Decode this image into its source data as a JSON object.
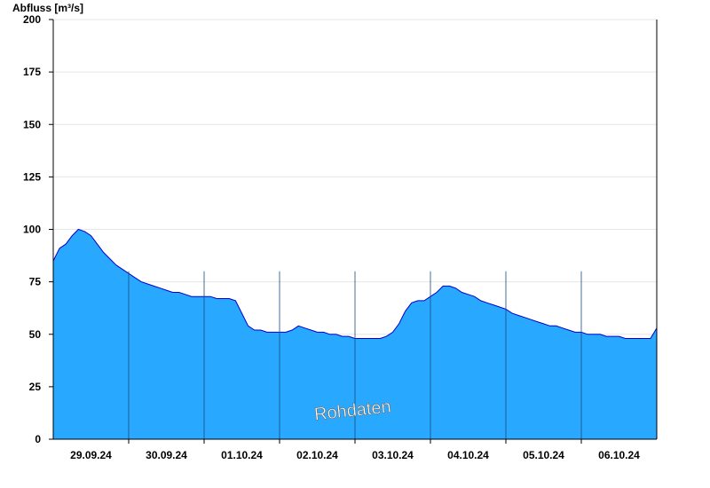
{
  "chart_data": {
    "type": "area",
    "ylabel": "Abfluss [m³/s]",
    "ylim": [
      0,
      200
    ],
    "yticks": [
      0,
      25,
      50,
      75,
      100,
      125,
      150,
      175,
      200
    ],
    "x_start": "2024-09-28T12:00",
    "x_end": "2024-10-06T12:00",
    "xtick_labels": [
      "29.09.24",
      "30.09.24",
      "01.10.24",
      "02.10.24",
      "03.10.24",
      "04.10.24",
      "05.10.24",
      "06.10.24"
    ],
    "day_separators": [
      "2024-09-29T12:00",
      "2024-09-30T12:00",
      "2024-10-01T12:00",
      "2024-10-02T12:00",
      "2024-10-03T12:00",
      "2024-10-04T12:00",
      "2024-10-05T12:00",
      "2024-10-06T12:00"
    ],
    "watermark": "Rohdaten",
    "colors": {
      "fill": "#29a8ff",
      "line": "#0000cc",
      "grid": "#e6e6e6",
      "separator": "#1a4a80"
    },
    "grid": true,
    "series": [
      {
        "x": [
          "2024-09-28T12:00",
          "2024-09-28T14:00",
          "2024-09-28T16:00",
          "2024-09-28T18:00",
          "2024-09-28T20:00",
          "2024-09-28T22:00",
          "2024-09-29T00:00",
          "2024-09-29T02:00",
          "2024-09-29T04:00",
          "2024-09-29T06:00",
          "2024-09-29T08:00",
          "2024-09-29T10:00",
          "2024-09-29T12:00",
          "2024-09-29T14:00",
          "2024-09-29T16:00",
          "2024-09-29T18:00",
          "2024-09-29T20:00",
          "2024-09-29T22:00",
          "2024-09-30T00:00",
          "2024-09-30T02:00",
          "2024-09-30T04:00",
          "2024-09-30T06:00",
          "2024-09-30T08:00",
          "2024-09-30T10:00",
          "2024-09-30T12:00",
          "2024-09-30T14:00",
          "2024-09-30T16:00",
          "2024-09-30T18:00",
          "2024-09-30T20:00",
          "2024-09-30T22:00",
          "2024-10-01T00:00",
          "2024-10-01T02:00",
          "2024-10-01T04:00",
          "2024-10-01T06:00",
          "2024-10-01T08:00",
          "2024-10-01T10:00",
          "2024-10-01T12:00",
          "2024-10-01T14:00",
          "2024-10-01T16:00",
          "2024-10-01T18:00",
          "2024-10-01T20:00",
          "2024-10-01T22:00",
          "2024-10-02T00:00",
          "2024-10-02T02:00",
          "2024-10-02T04:00",
          "2024-10-02T06:00",
          "2024-10-02T08:00",
          "2024-10-02T10:00",
          "2024-10-02T12:00",
          "2024-10-02T14:00",
          "2024-10-02T16:00",
          "2024-10-02T18:00",
          "2024-10-02T20:00",
          "2024-10-02T22:00",
          "2024-10-03T00:00",
          "2024-10-03T02:00",
          "2024-10-03T04:00",
          "2024-10-03T06:00",
          "2024-10-03T08:00",
          "2024-10-03T10:00",
          "2024-10-03T12:00",
          "2024-10-03T14:00",
          "2024-10-03T16:00",
          "2024-10-03T18:00",
          "2024-10-03T20:00",
          "2024-10-03T22:00",
          "2024-10-04T00:00",
          "2024-10-04T02:00",
          "2024-10-04T04:00",
          "2024-10-04T06:00",
          "2024-10-04T08:00",
          "2024-10-04T10:00",
          "2024-10-04T12:00",
          "2024-10-04T14:00",
          "2024-10-04T16:00",
          "2024-10-04T18:00",
          "2024-10-04T20:00",
          "2024-10-04T22:00",
          "2024-10-05T00:00",
          "2024-10-05T02:00",
          "2024-10-05T04:00",
          "2024-10-05T06:00",
          "2024-10-05T08:00",
          "2024-10-05T10:00",
          "2024-10-05T12:00",
          "2024-10-05T14:00",
          "2024-10-05T16:00",
          "2024-10-05T18:00",
          "2024-10-05T20:00",
          "2024-10-05T22:00",
          "2024-10-06T00:00",
          "2024-10-06T02:00",
          "2024-10-06T04:00",
          "2024-10-06T06:00",
          "2024-10-06T08:00",
          "2024-10-06T10:00",
          "2024-10-06T12:00"
        ],
        "values": [
          85,
          91,
          93,
          97,
          100,
          99,
          97,
          93,
          89,
          86,
          83,
          81,
          79,
          77,
          75,
          74,
          73,
          72,
          71,
          70,
          70,
          69,
          68,
          68,
          68,
          68,
          67,
          67,
          67,
          66,
          60,
          54,
          52,
          52,
          51,
          51,
          51,
          51,
          52,
          54,
          53,
          52,
          51,
          51,
          50,
          50,
          49,
          49,
          48,
          48,
          48,
          48,
          48,
          49,
          51,
          55,
          61,
          65,
          66,
          66,
          68,
          70,
          73,
          73,
          72,
          70,
          69,
          68,
          66,
          65,
          64,
          63,
          62,
          60,
          59,
          58,
          57,
          56,
          55,
          54,
          54,
          53,
          52,
          51,
          51,
          50,
          50,
          50,
          49,
          49,
          49,
          48,
          48,
          48,
          48,
          48,
          53
        ]
      }
    ]
  }
}
